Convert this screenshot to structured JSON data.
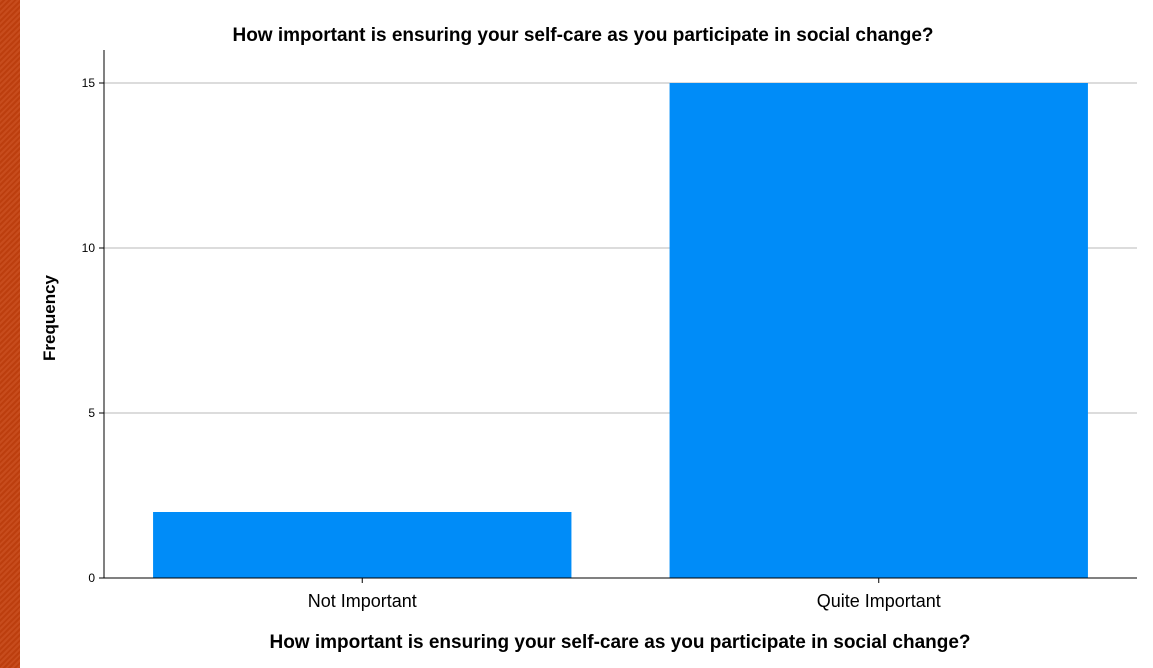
{
  "chart_data": {
    "type": "bar",
    "title": "How important is ensuring your self-care as you participate in social change?",
    "xlabel": "How important is ensuring your self-care as you participate in social change?",
    "ylabel": "Frequency",
    "categories": [
      "Not Important",
      "Quite Important"
    ],
    "values": [
      2,
      15
    ],
    "ylim": [
      0,
      16
    ],
    "yticks": [
      0,
      5,
      10,
      15
    ],
    "grid": true,
    "bar_color": "#008cf8"
  }
}
